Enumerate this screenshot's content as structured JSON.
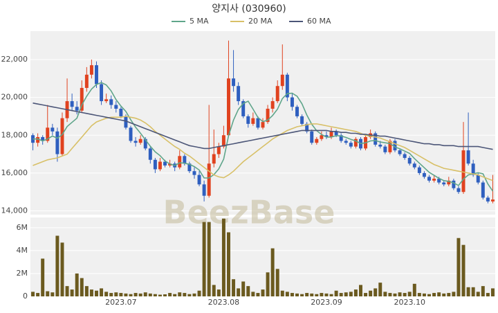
{
  "chart_data": {
    "type": "candlestick",
    "title": "양지사 (030960)",
    "watermark": "BeezBase",
    "grid": true,
    "up_color": "#e0421f",
    "down_color": "#2f5fbf",
    "categories": [
      null,
      null,
      null,
      null,
      null,
      null,
      null,
      null,
      null,
      null,
      null,
      null,
      null,
      null,
      null,
      null,
      null,
      null,
      "2023.07",
      null,
      null,
      null,
      null,
      null,
      null,
      null,
      null,
      null,
      null,
      null,
      null,
      null,
      null,
      null,
      null,
      null,
      null,
      null,
      null,
      "2023.08",
      null,
      null,
      null,
      null,
      null,
      null,
      null,
      null,
      null,
      null,
      null,
      null,
      null,
      null,
      null,
      null,
      null,
      null,
      null,
      null,
      "2023.09",
      null,
      null,
      null,
      null,
      null,
      null,
      null,
      null,
      null,
      null,
      null,
      null,
      null,
      null,
      null,
      null,
      "2023.10",
      null,
      null,
      null,
      null,
      null,
      null,
      null,
      null,
      null,
      null,
      null,
      null,
      null,
      null,
      null,
      null,
      null
    ],
    "open": [
      18000,
      17600,
      17900,
      17700,
      18400,
      18200,
      17000,
      18900,
      19800,
      19500,
      19300,
      20500,
      21200,
      21700,
      20700,
      19800,
      19900,
      19600,
      19400,
      19000,
      18400,
      17700,
      17600,
      17800,
      17300,
      16700,
      16200,
      16600,
      16400,
      16500,
      16300,
      16900,
      16500,
      16100,
      15900,
      15400,
      14800,
      16500,
      17000,
      17400,
      18000,
      21000,
      20600,
      19800,
      19000,
      18600,
      18900,
      18400,
      18700,
      19400,
      19800,
      20600,
      21200,
      20000,
      19500,
      19000,
      18600,
      18200,
      17600,
      17800,
      18000,
      17900,
      18200,
      18000,
      17700,
      17600,
      17400,
      17800,
      17300,
      17900,
      18100,
      17500,
      17400,
      17100,
      17700,
      17200,
      17000,
      16800,
      16500,
      16300,
      16000,
      15800,
      15600,
      15700,
      15500,
      15400,
      15600,
      15200,
      15000,
      17200,
      16500,
      15900,
      15500,
      14700,
      14500
    ],
    "high": [
      18100,
      18100,
      18000,
      19600,
      18600,
      18400,
      19200,
      21000,
      20200,
      19800,
      20900,
      21600,
      22000,
      21900,
      20900,
      20200,
      20100,
      19800,
      19500,
      19100,
      18500,
      17900,
      18000,
      17900,
      17400,
      16800,
      16800,
      16700,
      16700,
      16600,
      17200,
      17000,
      16600,
      16300,
      16100,
      15600,
      19600,
      18300,
      17600,
      18500,
      23000,
      22500,
      20800,
      19900,
      19100,
      19200,
      19000,
      18900,
      19600,
      20000,
      20900,
      22800,
      21300,
      20200,
      19600,
      19100,
      18700,
      18300,
      17900,
      18200,
      18200,
      18400,
      18300,
      18100,
      17800,
      17700,
      17900,
      17900,
      18000,
      18300,
      18200,
      17700,
      17500,
      17800,
      17800,
      17300,
      17100,
      16900,
      16600,
      16400,
      16100,
      15900,
      15900,
      15800,
      15600,
      15800,
      15700,
      15300,
      18700,
      19200,
      16700,
      16000,
      15600,
      14800,
      15900
    ],
    "low": [
      17200,
      17400,
      17500,
      17600,
      18000,
      16600,
      16900,
      18700,
      19300,
      19100,
      19200,
      20300,
      21000,
      20500,
      19600,
      19700,
      19400,
      19200,
      18900,
      18300,
      17600,
      17400,
      17500,
      17200,
      16500,
      16000,
      16100,
      16300,
      16300,
      16100,
      16200,
      16400,
      16000,
      15700,
      15300,
      14500,
      14700,
      16300,
      16800,
      17300,
      17900,
      20300,
      19600,
      18900,
      18400,
      18500,
      18300,
      18300,
      18600,
      19200,
      19700,
      20400,
      19800,
      19300,
      18900,
      18500,
      18100,
      17500,
      17500,
      17700,
      17800,
      17800,
      17900,
      17600,
      17500,
      17300,
      17300,
      17200,
      17200,
      17800,
      17400,
      17300,
      17000,
      17000,
      17100,
      16900,
      16700,
      16400,
      16200,
      15900,
      15700,
      15500,
      15500,
      15400,
      15300,
      15300,
      15100,
      14900,
      14900,
      16400,
      15800,
      15400,
      14600,
      14400,
      14400
    ],
    "close": [
      17600,
      17900,
      17700,
      18400,
      18200,
      17000,
      18900,
      19800,
      19500,
      19300,
      20500,
      21200,
      21700,
      20700,
      19800,
      19900,
      19600,
      19400,
      19000,
      18400,
      17700,
      17600,
      17800,
      17300,
      16700,
      16200,
      16600,
      16400,
      16500,
      16300,
      16900,
      16500,
      16100,
      15900,
      15400,
      14800,
      16500,
      17000,
      17400,
      18000,
      21000,
      20600,
      19800,
      19000,
      18600,
      18900,
      18400,
      18700,
      19400,
      19800,
      20600,
      21200,
      20000,
      19500,
      19000,
      18600,
      18200,
      17600,
      17800,
      18000,
      17900,
      18200,
      18000,
      17700,
      17600,
      17400,
      17800,
      17300,
      17900,
      18100,
      17500,
      17400,
      17100,
      17700,
      17200,
      17000,
      16800,
      16500,
      16300,
      16000,
      15800,
      15600,
      15700,
      15500,
      15400,
      15600,
      15200,
      15000,
      17200,
      16500,
      15900,
      15500,
      14700,
      14500,
      14600
    ],
    "series": [
      {
        "name": "5 MA",
        "color": "#5fa58a",
        "values": [
          17800,
          17800,
          17700,
          17800,
          17960,
          17840,
          18040,
          18460,
          18680,
          18900,
          19600,
          20060,
          20440,
          20680,
          20780,
          20660,
          20340,
          19880,
          19540,
          19260,
          18820,
          18420,
          18100,
          17760,
          17420,
          17120,
          16920,
          16640,
          16480,
          16400,
          16540,
          16520,
          16460,
          16340,
          16160,
          15740,
          15740,
          15920,
          16220,
          16740,
          17980,
          18800,
          19360,
          19680,
          19800,
          19380,
          18940,
          18720,
          18800,
          19040,
          19380,
          19940,
          20200,
          20220,
          20060,
          19660,
          19060,
          18580,
          18240,
          18040,
          17900,
          17900,
          17980,
          17960,
          17880,
          17780,
          17700,
          17560,
          17600,
          17700,
          17720,
          17640,
          17600,
          17560,
          17380,
          17280,
          17160,
          17040,
          16760,
          16520,
          16280,
          16040,
          15880,
          15720,
          15600,
          15560,
          15480,
          15340,
          15680,
          15900,
          15960,
          16020,
          15960,
          15420,
          15040
        ]
      },
      {
        "name": "20 MA",
        "color": "#d8c067",
        "values": [
          16400,
          16500,
          16600,
          16700,
          16750,
          16800,
          16900,
          17000,
          17300,
          17600,
          17900,
          18200,
          18500,
          18700,
          18800,
          18900,
          18950,
          18950,
          18950,
          19000,
          18950,
          18900,
          18800,
          18650,
          18450,
          18200,
          18000,
          17800,
          17600,
          17400,
          17250,
          17050,
          16900,
          16700,
          16500,
          16300,
          16100,
          15900,
          15800,
          15750,
          15900,
          16100,
          16350,
          16600,
          16800,
          17000,
          17200,
          17400,
          17600,
          17800,
          17950,
          18100,
          18250,
          18350,
          18450,
          18500,
          18550,
          18600,
          18600,
          18550,
          18500,
          18450,
          18400,
          18350,
          18300,
          18250,
          18200,
          18100,
          18000,
          17950,
          17900,
          17850,
          17750,
          17650,
          17550,
          17450,
          17350,
          17200,
          17050,
          16900,
          16750,
          16600,
          16450,
          16350,
          16250,
          16200,
          16150,
          16100,
          16050,
          16000,
          15950,
          15900,
          15800,
          15700,
          15600
        ]
      },
      {
        "name": "60 MA",
        "color": "#4b5577",
        "values": [
          19700,
          19650,
          19600,
          19550,
          19500,
          19450,
          19400,
          19350,
          19300,
          19250,
          19200,
          19150,
          19100,
          19050,
          19000,
          18950,
          18900,
          18850,
          18800,
          18750,
          18650,
          18550,
          18450,
          18350,
          18250,
          18150,
          18050,
          17950,
          17850,
          17750,
          17650,
          17550,
          17450,
          17400,
          17350,
          17300,
          17300,
          17350,
          17400,
          17450,
          17500,
          17550,
          17600,
          17650,
          17700,
          17750,
          17800,
          17850,
          17900,
          17950,
          18000,
          18050,
          18100,
          18150,
          18200,
          18250,
          18250,
          18250,
          18250,
          18250,
          18250,
          18200,
          18200,
          18150,
          18150,
          18100,
          18100,
          18050,
          18050,
          18000,
          18000,
          17950,
          17950,
          17900,
          17850,
          17800,
          17750,
          17700,
          17650,
          17600,
          17550,
          17550,
          17500,
          17500,
          17450,
          17450,
          17450,
          17400,
          17400,
          17400,
          17400,
          17400,
          17350,
          17300,
          17250
        ]
      }
    ],
    "ylim": [
      13800,
      23500
    ],
    "yticks": [
      {
        "value": 14000,
        "label": "14,000"
      },
      {
        "value": 16000,
        "label": "16,000"
      },
      {
        "value": 18000,
        "label": "18,000"
      },
      {
        "value": 20000,
        "label": "20,000"
      },
      {
        "value": 22000,
        "label": "22,000"
      }
    ],
    "volume": {
      "color": "#6b5a1f",
      "ylim": [
        0,
        6900000
      ],
      "yticks": [
        0,
        {
          "value": 2000000,
          "label": "2M"
        },
        {
          "value": 4000000,
          "label": "4M"
        },
        {
          "value": 6000000,
          "label": "6M"
        }
      ],
      "values": [
        400000,
        300000,
        3300000,
        450000,
        350000,
        5300000,
        4700000,
        900000,
        600000,
        2000000,
        1600000,
        900000,
        600000,
        500000,
        700000,
        400000,
        300000,
        350000,
        300000,
        250000,
        200000,
        300000,
        250000,
        350000,
        250000,
        200000,
        150000,
        180000,
        300000,
        200000,
        350000,
        300000,
        200000,
        250000,
        500000,
        6500000,
        6500000,
        1000000,
        600000,
        6800000,
        5600000,
        1500000,
        700000,
        1300000,
        900000,
        400000,
        300000,
        600000,
        2100000,
        4200000,
        2400000,
        500000,
        400000,
        300000,
        250000,
        200000,
        300000,
        250000,
        200000,
        300000,
        250000,
        200000,
        500000,
        300000,
        350000,
        400000,
        600000,
        1000000,
        300000,
        500000,
        700000,
        1200000,
        400000,
        300000,
        250000,
        350000,
        300000,
        400000,
        1100000,
        300000,
        250000,
        200000,
        300000,
        350000,
        250000,
        300000,
        400000,
        5100000,
        4500000,
        800000,
        800000,
        400000,
        900000,
        300000,
        700000
      ]
    }
  }
}
